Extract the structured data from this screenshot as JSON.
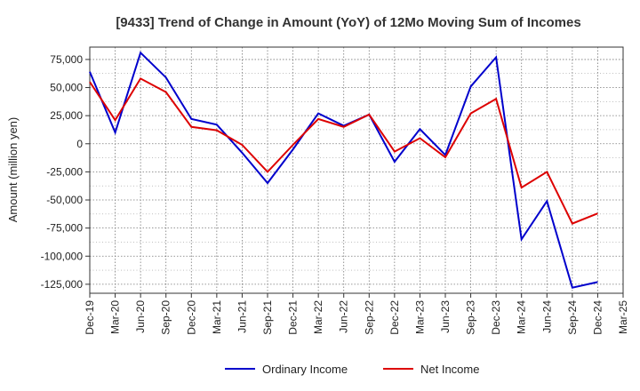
{
  "chart_data": {
    "type": "line",
    "title": "[9433]  Trend of Change in Amount (YoY) of 12Mo Moving Sum of Incomes",
    "xlabel": "",
    "ylabel": "Amount (million yen)",
    "x": [
      "Dec-19",
      "Mar-20",
      "Jun-20",
      "Sep-20",
      "Dec-20",
      "Mar-21",
      "Jun-21",
      "Sep-21",
      "Dec-21",
      "Mar-22",
      "Jun-22",
      "Sep-22",
      "Dec-22",
      "Mar-23",
      "Jun-23",
      "Sep-23",
      "Dec-23",
      "Mar-24",
      "Jun-24",
      "Sep-24",
      "Dec-24",
      "Mar-25"
    ],
    "ylim": [
      -133000,
      86000
    ],
    "yticks": [
      75000,
      50000,
      25000,
      0,
      -25000,
      -50000,
      -75000,
      -100000,
      -125000
    ],
    "ytick_labels": [
      "75,000",
      "50,000",
      "25,000",
      "0",
      "-25,000",
      "-50,000",
      "-75,000",
      "-100,000",
      "-125,000"
    ],
    "grid": true,
    "legend_position": "bottom",
    "series": [
      {
        "name": "Ordinary Income",
        "color": "#0000cc",
        "values": [
          64000,
          10000,
          81000,
          59000,
          22000,
          17000,
          -8000,
          -35000,
          -5000,
          27000,
          16000,
          26000,
          -16000,
          13000,
          -10000,
          51000,
          77000,
          -85000,
          -51000,
          -128000,
          -123000,
          null
        ]
      },
      {
        "name": "Net Income",
        "color": "#dd0000",
        "values": [
          55000,
          21000,
          58000,
          46000,
          15000,
          12000,
          -1000,
          -25000,
          -1000,
          22000,
          15000,
          26000,
          -7000,
          5000,
          -12000,
          27000,
          40000,
          -39000,
          -25000,
          -71000,
          -62000,
          null
        ]
      }
    ]
  }
}
